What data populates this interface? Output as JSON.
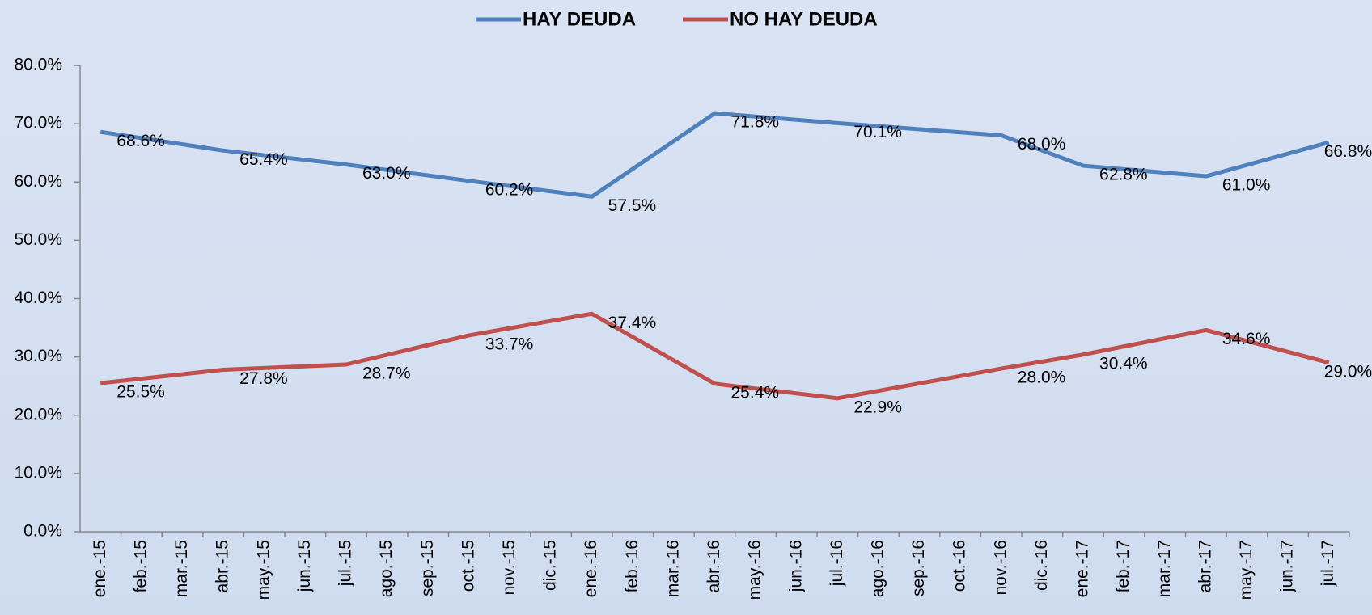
{
  "chart_data": {
    "type": "line",
    "categories": [
      "ene.-15",
      "feb.-15",
      "mar.-15",
      "abr.-15",
      "may.-15",
      "jun.-15",
      "jul.-15",
      "ago.-15",
      "sep.-15",
      "oct.-15",
      "nov.-15",
      "dic.-15",
      "ene.-16",
      "feb.-16",
      "mar.-16",
      "abr.-16",
      "may.-16",
      "jun.-16",
      "jul.-16",
      "ago.-16",
      "sep.-16",
      "oct.-16",
      "nov.-16",
      "dic.-16",
      "ene.-17",
      "feb.-17",
      "mar.-17",
      "abr.-17",
      "may.-17",
      "jun.-17",
      "jul.-17"
    ],
    "x": [
      "ene.-15",
      "abr.-15",
      "jul.-15",
      "oct.-15",
      "ene.-16",
      "abr.-16",
      "jul.-16",
      "nov.-16",
      "ene.-17",
      "abr.-17",
      "jul.-17"
    ],
    "series": [
      {
        "name": "HAY DEUDA",
        "color": "#4f81bd",
        "values": [
          68.6,
          65.4,
          63.0,
          60.2,
          57.5,
          71.8,
          70.1,
          68.0,
          62.8,
          61.0,
          66.8
        ],
        "value_labels": [
          "68.6%",
          "65.4%",
          "63.0%",
          "60.2%",
          "57.5%",
          "71.8%",
          "70.1%",
          "68.0%",
          "62.8%",
          "61.0%",
          "66.8%"
        ]
      },
      {
        "name": "NO HAY DEUDA",
        "color": "#c0504d",
        "values": [
          25.5,
          27.8,
          28.7,
          33.7,
          37.4,
          25.4,
          22.9,
          28.0,
          30.4,
          34.6,
          29.0
        ],
        "value_labels": [
          "25.5%",
          "27.8%",
          "28.7%",
          "33.7%",
          "37.4%",
          "25.4%",
          "22.9%",
          "28.0%",
          "30.4%",
          "34.6%",
          "29.0%"
        ]
      }
    ],
    "ylim": [
      0,
      80
    ],
    "yticks": [
      {
        "value": 0,
        "label": "0.0%"
      },
      {
        "value": 10,
        "label": "10.0%"
      },
      {
        "value": 20,
        "label": "20.0%"
      },
      {
        "value": 30,
        "label": "30.0%"
      },
      {
        "value": 40,
        "label": "40.0%"
      },
      {
        "value": 50,
        "label": "50.0%"
      },
      {
        "value": 60,
        "label": "60.0%"
      },
      {
        "value": 70,
        "label": "70.0%"
      },
      {
        "value": 80,
        "label": "80.0%"
      }
    ],
    "legend": "top"
  }
}
